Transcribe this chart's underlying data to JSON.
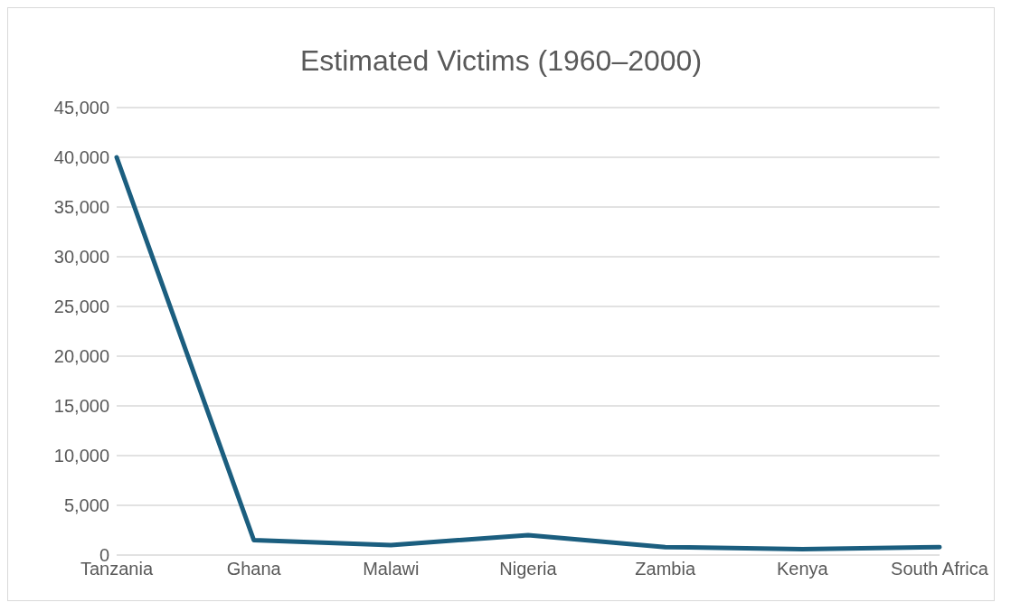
{
  "chart_data": {
    "type": "line",
    "title": "Estimated Victims (1960–2000)",
    "categories": [
      "Tanzania",
      "Ghana",
      "Malawi",
      "Nigeria",
      "Zambia",
      "Kenya",
      "South Africa"
    ],
    "series": [
      {
        "color": "#1b5e7f",
        "values": [
          40000,
          1500,
          1000,
          2000,
          800,
          600,
          800
        ]
      }
    ],
    "ylim": [
      0,
      45000
    ],
    "yticks": [
      0,
      {
        "value": 5000,
        "label": "5,000"
      },
      {
        "value": 10000,
        "label": "10,000"
      },
      {
        "value": 15000,
        "label": "15,000"
      },
      {
        "value": 20000,
        "label": "20,000"
      },
      {
        "value": 25000,
        "label": "25,000"
      },
      {
        "value": 30000,
        "label": "30,000"
      },
      {
        "value": 35000,
        "label": "35,000"
      },
      {
        "value": 40000,
        "label": "40,000"
      },
      {
        "value": 45000,
        "label": "45,000"
      }
    ],
    "grid": "y",
    "legend": false,
    "marker": "none",
    "line_style": "solid"
  }
}
